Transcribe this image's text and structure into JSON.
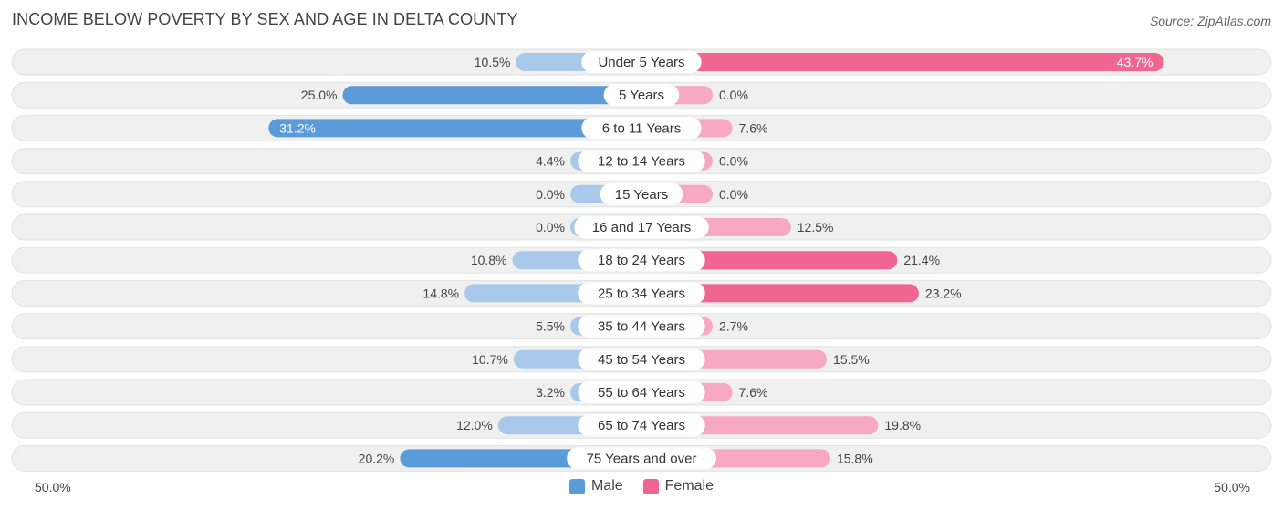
{
  "title": "INCOME BELOW POVERTY BY SEX AND AGE IN DELTA COUNTY",
  "source": "Source: ZipAtlas.com",
  "colors": {
    "male": "#5b9bd9",
    "male_light": "#a9c9eb",
    "female": "#f06592",
    "female_light": "#f7a8c2",
    "row_bg": "#f0f0f0"
  },
  "legend": {
    "male": "Male",
    "female": "Female"
  },
  "axis": {
    "left_label": "50.0%",
    "right_label": "50.0%"
  },
  "chart_data": {
    "type": "bar",
    "orientation": "horizontal-diverging",
    "title": "INCOME BELOW POVERTY BY SEX AND AGE IN DELTA COUNTY",
    "xlim": [
      -50,
      50
    ],
    "categories": [
      "Under 5 Years",
      "5 Years",
      "6 to 11 Years",
      "12 to 14 Years",
      "15 Years",
      "16 and 17 Years",
      "18 to 24 Years",
      "25 to 34 Years",
      "35 to 44 Years",
      "45 to 54 Years",
      "55 to 64 Years",
      "65 to 74 Years",
      "75 Years and over"
    ],
    "series": [
      {
        "name": "Male",
        "values": [
          10.5,
          25.0,
          31.2,
          4.4,
          0.0,
          0.0,
          10.8,
          14.8,
          5.5,
          10.7,
          3.2,
          12.0,
          20.2
        ],
        "labels": [
          "10.5%",
          "25.0%",
          "31.2%",
          "4.4%",
          "0.0%",
          "0.0%",
          "10.8%",
          "14.8%",
          "5.5%",
          "10.7%",
          "3.2%",
          "12.0%",
          "20.2%"
        ]
      },
      {
        "name": "Female",
        "values": [
          43.7,
          0.0,
          7.6,
          0.0,
          0.0,
          12.5,
          21.4,
          23.2,
          2.7,
          15.5,
          7.6,
          19.8,
          15.8
        ],
        "labels": [
          "43.7%",
          "0.0%",
          "7.6%",
          "0.0%",
          "0.0%",
          "12.5%",
          "21.4%",
          "23.2%",
          "2.7%",
          "15.5%",
          "7.6%",
          "19.8%",
          "15.8%"
        ]
      }
    ]
  }
}
